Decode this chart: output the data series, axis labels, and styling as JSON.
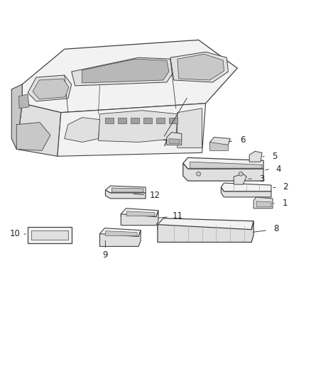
{
  "bg_color": "#ffffff",
  "line_color": "#404040",
  "fill_light": "#f2f2f2",
  "fill_mid": "#e0e0e0",
  "fill_dark": "#c8c8c8",
  "fill_darker": "#b0b0b0",
  "fig_width": 4.38,
  "fig_height": 5.33,
  "dpi": 100
}
